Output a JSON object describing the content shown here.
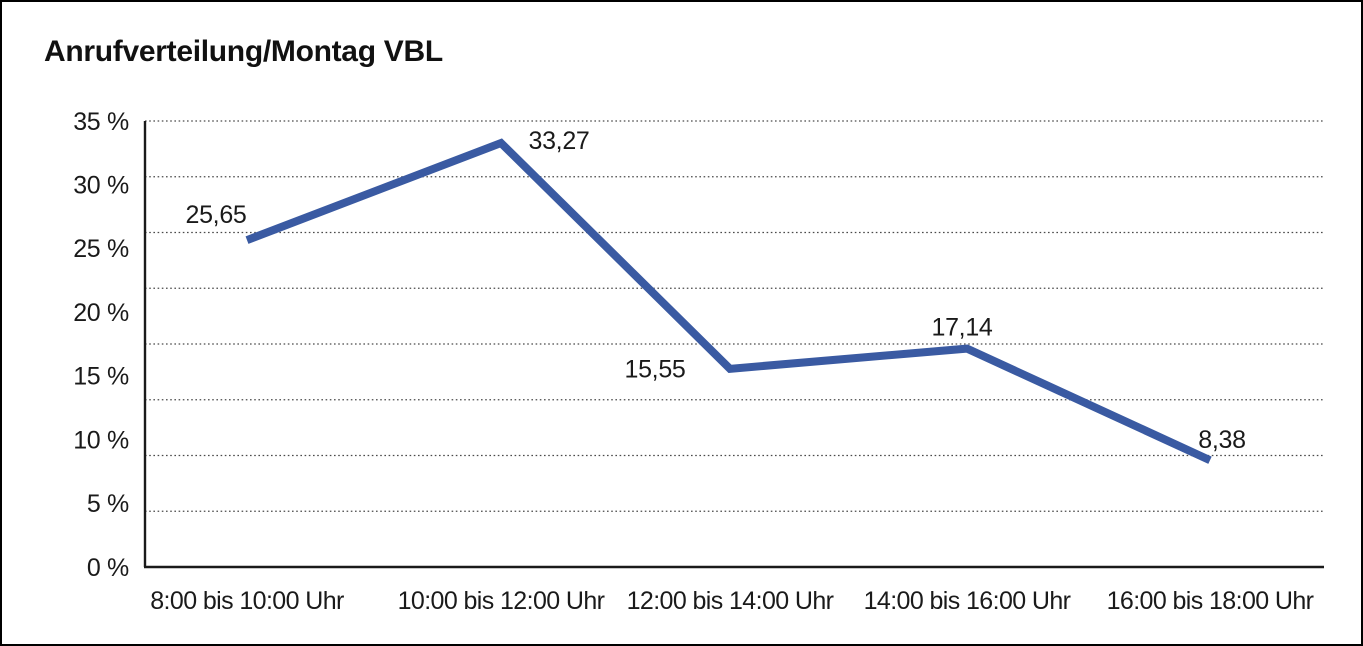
{
  "chart_data": {
    "type": "line",
    "title": "Anrufverteilung/Montag VBL",
    "categories": [
      "8:00 bis 10:00 Uhr",
      "10:00 bis 12:00 Uhr",
      "12:00 bis 14:00 Uhr",
      "14:00 bis 16:00 Uhr",
      "16:00 bis 18:00 Uhr"
    ],
    "values": [
      25.65,
      33.27,
      15.55,
      17.14,
      8.38
    ],
    "value_labels": [
      "25,65",
      "33,27",
      "15,55",
      "17,14",
      "8,38"
    ],
    "y_tick_labels": [
      "35 %",
      "30 %",
      "25 %",
      "20 %",
      "15 %",
      "10 %",
      "5 %",
      "0 %"
    ],
    "ylim": [
      0,
      35
    ],
    "xlabel": "",
    "ylabel": "",
    "grid": "horizontal-dotted",
    "legend": "none",
    "colors": {
      "line": "#3a5aa2",
      "text": "#1a1a1a",
      "gridline": "#4a4a4a",
      "axis": "#1a1a1a",
      "border": "#000000",
      "background": "#ffffff"
    }
  }
}
